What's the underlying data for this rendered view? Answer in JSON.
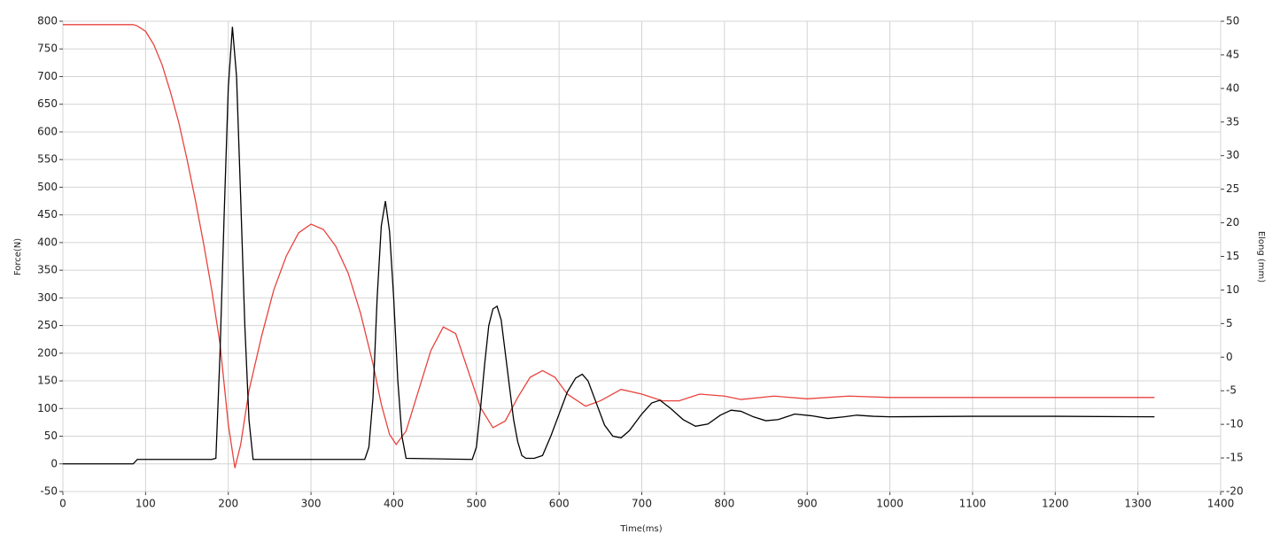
{
  "chart_data": {
    "type": "line",
    "xlabel": "Time(ms)",
    "ylabel": "Force(N)",
    "y2label": "Elong (mm)",
    "xlim": [
      0,
      1400
    ],
    "xticks": [
      0,
      100,
      200,
      300,
      400,
      500,
      600,
      700,
      800,
      900,
      1000,
      1100,
      1200,
      1300,
      1400
    ],
    "ylim": [
      -50,
      800
    ],
    "yticks": [
      -50,
      0,
      50,
      100,
      150,
      200,
      250,
      300,
      350,
      400,
      450,
      500,
      550,
      600,
      650,
      700,
      750,
      800
    ],
    "y2lim": [
      -20,
      50
    ],
    "y2ticks": [
      -20,
      -15,
      -10,
      -5,
      0,
      5,
      10,
      15,
      20,
      25,
      30,
      35,
      40,
      45,
      50
    ],
    "grid": true,
    "series": [
      {
        "color": "#000000",
        "x": [
          0,
          85,
          90,
          180,
          185,
          190,
          195,
          200,
          205,
          210,
          215,
          220,
          225,
          230,
          365,
          370,
          375,
          380,
          385,
          390,
          395,
          400,
          405,
          410,
          415,
          495,
          500,
          505,
          510,
          515,
          520,
          525,
          530,
          535,
          540,
          545,
          550,
          555,
          560,
          570,
          580,
          590,
          600,
          610,
          620,
          628,
          635,
          645,
          655,
          665,
          675,
          685,
          700,
          712,
          722,
          735,
          750,
          765,
          780,
          795,
          808,
          820,
          835,
          850,
          865,
          885,
          905,
          925,
          945,
          960,
          980,
          1000,
          1100,
          1200,
          1320
        ],
        "values": [
          0,
          0,
          8,
          8,
          10,
          200,
          450,
          680,
          790,
          700,
          480,
          250,
          80,
          8,
          8,
          30,
          120,
          300,
          430,
          475,
          420,
          300,
          150,
          50,
          10,
          8,
          30,
          100,
          180,
          250,
          280,
          285,
          260,
          200,
          140,
          80,
          40,
          15,
          10,
          10,
          15,
          50,
          90,
          130,
          155,
          162,
          150,
          110,
          70,
          50,
          47,
          60,
          90,
          110,
          115,
          100,
          80,
          68,
          72,
          88,
          97,
          95,
          85,
          78,
          80,
          90,
          87,
          82,
          85,
          88,
          86,
          85,
          86,
          86,
          85
        ]
      },
      {
        "color": "#e8423c",
        "axis": "y2",
        "x": [
          0,
          85,
          90,
          100,
          110,
          120,
          130,
          140,
          150,
          160,
          170,
          180,
          190,
          200,
          208,
          215,
          225,
          240,
          255,
          270,
          285,
          300,
          315,
          330,
          345,
          360,
          375,
          385,
          395,
          403,
          415,
          430,
          445,
          460,
          475,
          490,
          505,
          520,
          535,
          550,
          565,
          580,
          595,
          610,
          632,
          650,
          675,
          700,
          725,
          745,
          770,
          800,
          820,
          860,
          900,
          950,
          1000,
          1320
        ],
        "values": [
          49.5,
          49.5,
          49.3,
          48.5,
          46.5,
          43.5,
          39.5,
          35,
          29.5,
          23.5,
          17,
          10,
          2,
          -10,
          -16.5,
          -13,
          -5,
          3,
          10,
          15,
          18.5,
          19.8,
          19,
          16.5,
          12.5,
          6.5,
          -1,
          -7,
          -11.5,
          -13,
          -11,
          -5,
          1,
          4.5,
          3.5,
          -2,
          -7.5,
          -10.5,
          -9.5,
          -6,
          -3,
          -2,
          -3,
          -5.5,
          -7.3,
          -6.5,
          -4.8,
          -5.5,
          -6.5,
          -6.5,
          -5.5,
          -5.8,
          -6.3,
          -5.8,
          -6.2,
          -5.8,
          -6,
          -6
        ]
      }
    ]
  }
}
